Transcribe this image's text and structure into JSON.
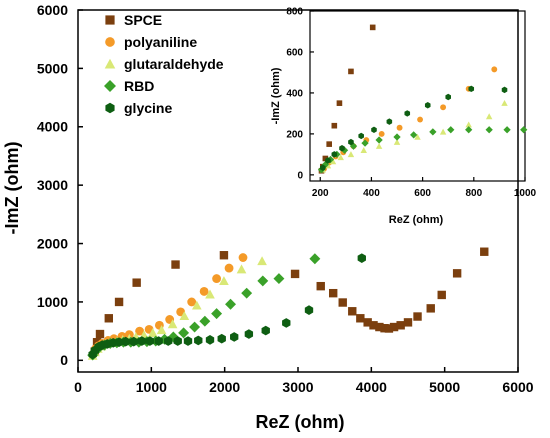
{
  "chart_data": [
    {
      "id": "main",
      "type": "scatter",
      "xlabel": "ReZ (ohm)",
      "ylabel": "-ImZ (ohm)",
      "xlim": [
        0,
        6000
      ],
      "ylim": [
        -200,
        6000
      ],
      "xticks": [
        "0",
        "1000",
        "2000",
        "3000",
        "4000",
        "5000",
        "6000"
      ],
      "yticks": [
        "0",
        "1000",
        "2000",
        "3000",
        "4000",
        "5000",
        "6000"
      ],
      "legend": "top-left",
      "series": [
        {
          "name": "SPCE",
          "color": "#7b3f0e",
          "marker": "square",
          "x": [
            230,
            260,
            300,
            420,
            560,
            800,
            1330,
            1990,
            2960,
            3310,
            3480,
            3610,
            3740,
            3850,
            3950,
            4030,
            4110,
            4180,
            4240,
            4310,
            4400,
            4500,
            4630,
            4810,
            4960,
            5170,
            5540
          ],
          "y": [
            150,
            310,
            450,
            720,
            1000,
            1330,
            1640,
            1800,
            1480,
            1270,
            1150,
            990,
            840,
            720,
            650,
            600,
            570,
            550,
            545,
            570,
            600,
            650,
            750,
            890,
            1120,
            1490,
            1860
          ]
        },
        {
          "name": "polyaniline",
          "color": "#f49a28",
          "marker": "circle",
          "x": [
            210,
            240,
            280,
            330,
            410,
            490,
            600,
            700,
            840,
            970,
            1110,
            1250,
            1400,
            1550,
            1720,
            1890,
            2060,
            2250
          ],
          "y": [
            110,
            200,
            250,
            290,
            340,
            370,
            410,
            440,
            500,
            530,
            600,
            700,
            830,
            1000,
            1180,
            1400,
            1580,
            1760
          ]
        },
        {
          "name": "glutaraldehyde",
          "color": "#d9e876",
          "marker": "triangle",
          "x": [
            200,
            230,
            270,
            320,
            380,
            450,
            530,
            610,
            700,
            790,
            900,
            1020,
            1140,
            1290,
            1450,
            1620,
            1800,
            1990,
            2230,
            2510
          ],
          "y": [
            80,
            140,
            200,
            240,
            280,
            300,
            330,
            350,
            370,
            400,
            430,
            470,
            520,
            620,
            760,
            940,
            1130,
            1360,
            1560,
            1700
          ]
        },
        {
          "name": "RBD",
          "color": "#3aa129",
          "marker": "diamond",
          "x": [
            200,
            240,
            290,
            360,
            440,
            530,
            620,
            720,
            830,
            940,
            1060,
            1180,
            1300,
            1440,
            1590,
            1730,
            1890,
            2080,
            2300,
            2520,
            2740,
            3230
          ],
          "y": [
            90,
            160,
            220,
            260,
            290,
            300,
            310,
            310,
            310,
            320,
            330,
            360,
            400,
            470,
            570,
            670,
            800,
            960,
            1150,
            1360,
            1400,
            1740
          ]
        },
        {
          "name": "glycine",
          "color": "#0e5e12",
          "marker": "hexagon",
          "x": [
            200,
            230,
            280,
            330,
            400,
            480,
            560,
            650,
            760,
            870,
            980,
            1100,
            1230,
            1360,
            1500,
            1640,
            1800,
            1960,
            2130,
            2330,
            2560,
            2840,
            3150,
            3870
          ],
          "y": [
            100,
            170,
            230,
            260,
            280,
            300,
            310,
            320,
            320,
            330,
            330,
            330,
            330,
            330,
            330,
            340,
            350,
            370,
            400,
            450,
            510,
            640,
            860,
            1750
          ]
        }
      ]
    },
    {
      "id": "inset",
      "type": "scatter",
      "xlabel": "ReZ (ohm)",
      "ylabel": "-ImZ (ohm)",
      "xlim": [
        160,
        1000
      ],
      "ylim": [
        -30,
        800
      ],
      "xticks": [
        "200",
        "400",
        "600",
        "800",
        "1000"
      ],
      "yticks": [
        "0",
        "200",
        "400",
        "600",
        "800"
      ],
      "series": [
        {
          "name": "SPCE",
          "color": "#7b3f0e",
          "marker": "square",
          "x": [
            205,
            210,
            220,
            235,
            255,
            275,
            320,
            405
          ],
          "y": [
            20,
            40,
            80,
            150,
            240,
            350,
            505,
            720
          ]
        },
        {
          "name": "polyaniline",
          "color": "#f49a28",
          "marker": "circle",
          "x": [
            215,
            235,
            260,
            290,
            330,
            380,
            440,
            510,
            590,
            680,
            780,
            880
          ],
          "y": [
            30,
            60,
            90,
            110,
            140,
            170,
            200,
            230,
            270,
            330,
            420,
            515
          ]
        },
        {
          "name": "glutaraldehyde",
          "color": "#d9e876",
          "marker": "triangle",
          "x": [
            210,
            230,
            250,
            280,
            320,
            370,
            430,
            500,
            580,
            680,
            780,
            860,
            920
          ],
          "y": [
            25,
            45,
            65,
            85,
            100,
            120,
            140,
            160,
            185,
            210,
            245,
            285,
            350
          ]
        },
        {
          "name": "RBD",
          "color": "#3aa129",
          "marker": "diamond",
          "x": [
            205,
            220,
            240,
            265,
            295,
            330,
            375,
            430,
            500,
            565,
            640,
            710,
            780,
            860,
            930,
            995
          ],
          "y": [
            25,
            50,
            75,
            100,
            120,
            140,
            155,
            170,
            185,
            195,
            210,
            220,
            220,
            220,
            220,
            220
          ]
        },
        {
          "name": "glycine",
          "color": "#0e5e12",
          "marker": "hexagon",
          "x": [
            210,
            230,
            255,
            285,
            320,
            360,
            410,
            470,
            540,
            620,
            700,
            790,
            920
          ],
          "y": [
            35,
            70,
            100,
            130,
            160,
            190,
            220,
            260,
            300,
            340,
            380,
            420,
            415
          ]
        }
      ]
    }
  ]
}
